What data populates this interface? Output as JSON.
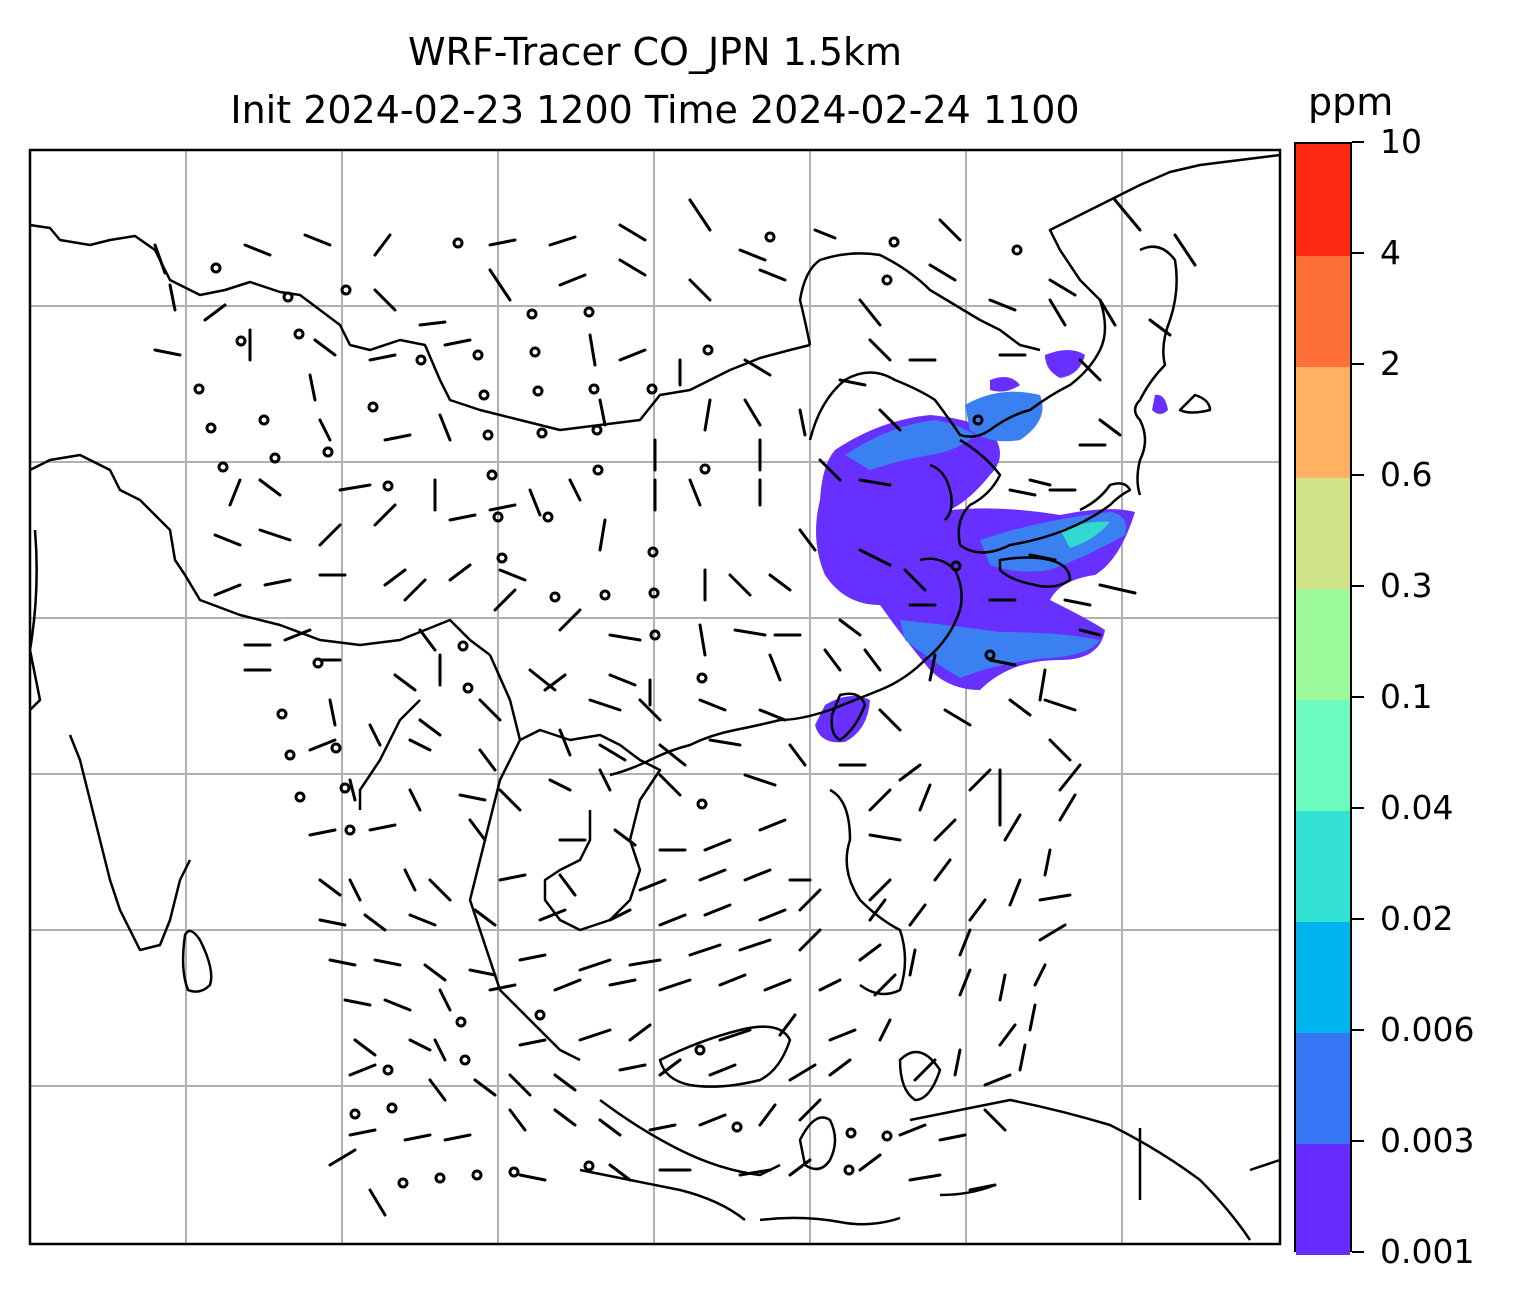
{
  "title": {
    "line1": "WRF-Tracer CO_JPN 1.5km",
    "line2": "Init 2024-02-23 1200 Time 2024-02-24 1100"
  },
  "colorbar": {
    "unit_label": "ppm",
    "levels": [
      "0.001",
      "0.003",
      "0.006",
      "0.02",
      "0.04",
      "0.1",
      "0.3",
      "0.6",
      "2",
      "4",
      "10"
    ],
    "colors": [
      "#652bff",
      "#3476f3",
      "#00b4ed",
      "#32e0d4",
      "#6cfcc0",
      "#9cfa9a",
      "#d0e487",
      "#ffb060",
      "#ff7038",
      "#ff2a12"
    ]
  },
  "map": {
    "gridlines": true,
    "coastline_color": "#000000",
    "plume_color": "#6730ff",
    "plume_edge_color": "#3a80f0"
  }
}
